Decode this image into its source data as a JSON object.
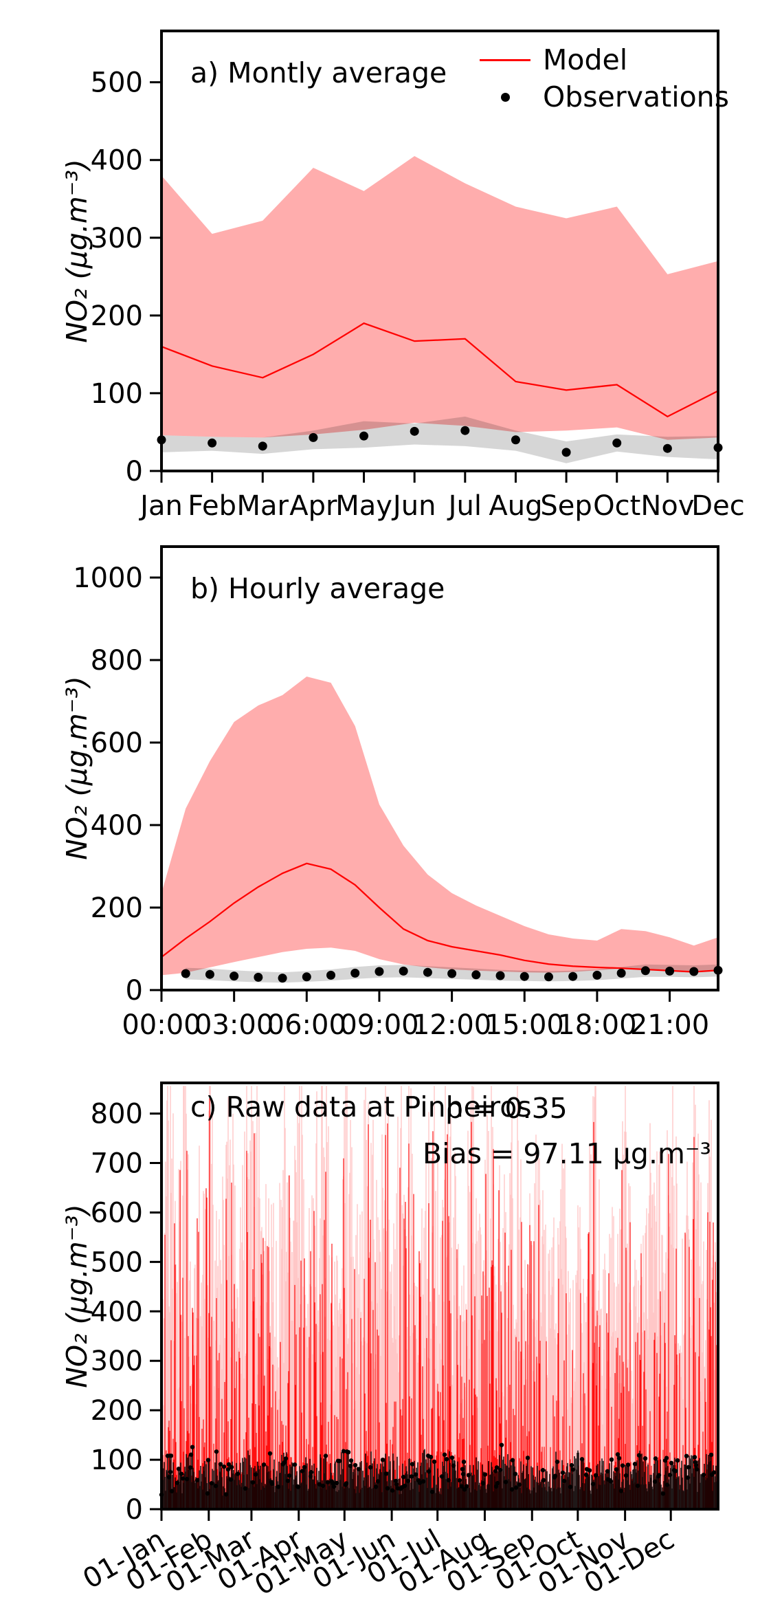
{
  "figure": {
    "background": "#ffffff",
    "colors": {
      "model": "#ff0000",
      "model_band": "rgba(255,0,0,0.32)",
      "observations": "#000000",
      "observations_band": "rgba(0,0,0,0.16)",
      "axis": "#000000"
    }
  },
  "chart_data": [
    {
      "id": "monthly_average",
      "type": "line",
      "title": "a) Montly average",
      "ylabel": "NO₂ (µg.m⁻³)",
      "categories": [
        "Jan",
        "Feb",
        "Mar",
        "Apr",
        "May",
        "Jun",
        "Jul",
        "Aug",
        "Sep",
        "Oct",
        "Nov",
        "Dec"
      ],
      "ylim": [
        0,
        566
      ],
      "yticks": [
        0,
        100,
        200,
        300,
        400,
        500
      ],
      "legend_position": "upper right",
      "grid": false,
      "series": [
        {
          "name": "Model",
          "type": "line",
          "color": "model",
          "values": [
            160,
            135,
            120,
            150,
            190,
            167,
            170,
            115,
            104,
            111,
            70,
            103
          ]
        },
        {
          "name": "Model spread",
          "type": "band",
          "color": "model_band",
          "lower": [
            46,
            44,
            43,
            47,
            53,
            62,
            58,
            50,
            52,
            56,
            40,
            43
          ],
          "upper": [
            380,
            305,
            322,
            390,
            360,
            405,
            370,
            340,
            325,
            340,
            253,
            270
          ]
        },
        {
          "name": "Observations",
          "type": "scatter",
          "color": "observations",
          "values": [
            40,
            36,
            32,
            43,
            45,
            51,
            52,
            40,
            24,
            36,
            29,
            30
          ]
        },
        {
          "name": "Observations spread",
          "type": "band",
          "color": "observations_band",
          "lower": [
            24,
            26,
            22,
            28,
            30,
            34,
            32,
            26,
            10,
            25,
            18,
            15
          ],
          "upper": [
            46,
            44,
            43,
            52,
            64,
            61,
            70,
            52,
            38,
            47,
            44,
            45
          ]
        }
      ]
    },
    {
      "id": "hourly_average",
      "type": "line",
      "title": "b) Hourly average",
      "ylabel": "NO₂ (µg.m⁻³)",
      "x": [
        0,
        1,
        2,
        3,
        4,
        5,
        6,
        7,
        8,
        9,
        10,
        11,
        12,
        13,
        14,
        15,
        16,
        17,
        18,
        19,
        20,
        21,
        22,
        23
      ],
      "xticks": [
        0,
        3,
        6,
        9,
        12,
        15,
        18,
        21
      ],
      "xtick_labels": [
        "00:00",
        "03:00",
        "06:00",
        "09:00",
        "12:00",
        "15:00",
        "18:00",
        "21:00"
      ],
      "ylim": [
        0,
        1075
      ],
      "yticks": [
        0,
        200,
        400,
        600,
        800,
        1000
      ],
      "grid": false,
      "series": [
        {
          "name": "Model",
          "type": "line",
          "color": "model",
          "values": [
            80,
            125,
            166,
            211,
            250,
            283,
            307,
            293,
            255,
            200,
            148,
            120,
            105,
            95,
            85,
            72,
            63,
            58,
            55,
            53,
            50,
            47,
            44,
            48
          ]
        },
        {
          "name": "Model spread",
          "type": "band",
          "color": "model_band",
          "lower": [
            36,
            42,
            55,
            68,
            80,
            92,
            100,
            103,
            95,
            75,
            62,
            55,
            50,
            47,
            45,
            43,
            42,
            44,
            48,
            52,
            52,
            48,
            44,
            46
          ],
          "upper": [
            235,
            440,
            555,
            650,
            690,
            715,
            760,
            745,
            640,
            450,
            350,
            280,
            235,
            205,
            180,
            155,
            135,
            125,
            120,
            148,
            143,
            128,
            108,
            128
          ]
        },
        {
          "name": "Observations",
          "type": "scatter",
          "color": "observations",
          "values": [
            null,
            40,
            38,
            34,
            31,
            29,
            32,
            36,
            41,
            45,
            46,
            43,
            40,
            37,
            35,
            33,
            32,
            33,
            36,
            41,
            47,
            46,
            45,
            48
          ]
        },
        {
          "name": "Observations spread",
          "type": "band",
          "color": "observations_band",
          "lower": [
            null,
            26,
            24,
            21,
            19,
            18,
            20,
            23,
            27,
            30,
            31,
            29,
            27,
            25,
            23,
            22,
            21,
            22,
            24,
            28,
            32,
            32,
            31,
            33
          ],
          "upper": [
            null,
            54,
            52,
            48,
            45,
            43,
            46,
            50,
            56,
            60,
            61,
            58,
            55,
            52,
            49,
            47,
            46,
            47,
            50,
            56,
            62,
            61,
            60,
            62
          ]
        }
      ]
    },
    {
      "id": "raw_data_pinheiros",
      "type": "raw-series",
      "title": "c) Raw data at Pinheiros",
      "annotations": {
        "rho": "ρ = 0.35",
        "bias": "Bias = 97.11 µg.m⁻³"
      },
      "ylabel": "NO₂ (µg.m⁻³)",
      "xtick_labels": [
        "01-Jan",
        "01-Feb",
        "01-Mar",
        "01-Apr",
        "01-May",
        "01-Jun",
        "01-Jul",
        "01-Aug",
        "01-Sep",
        "01-Oct",
        "01-Nov",
        "01-Dec"
      ],
      "xtick_days": [
        0,
        31,
        59,
        90,
        120,
        151,
        181,
        212,
        243,
        273,
        304,
        334
      ],
      "days_in_year": 365,
      "ylim": [
        0,
        862
      ],
      "yticks": [
        0,
        100,
        200,
        300,
        400,
        500,
        600,
        700,
        800
      ],
      "grid": false,
      "series": [
        {
          "name": "Model (raw hourly)",
          "color": "model",
          "envelope_max": [
            430,
            870,
            560,
            900,
            480,
            700,
            920,
            540,
            640,
            880,
            500,
            760,
            900,
            580,
            680,
            460,
            880,
            620,
            900,
            520,
            740,
            880,
            560,
            640,
            900,
            480,
            700,
            860,
            540,
            900,
            620,
            760,
            880,
            500,
            680,
            900,
            560,
            840,
            620,
            480,
            880,
            540,
            720,
            900,
            580,
            660,
            860,
            500,
            620,
            740,
            460,
            560,
            680,
            420,
            600,
            520,
            880,
            440,
            580,
            500,
            900,
            420,
            540,
            640,
            880,
            560,
            900,
            480,
            660,
            880,
            540,
            760,
            640
          ]
        },
        {
          "name": "Observations (raw hourly)",
          "color": "observations",
          "envelope_max": [
            95,
            120,
            80,
            110,
            130,
            90,
            105,
            125,
            85,
            115,
            100,
            130,
            90,
            110,
            120,
            95,
            130,
            105,
            85,
            118,
            100,
            125,
            92,
            112,
            130,
            88,
            108,
            120,
            96,
            115,
            128,
            90,
            106,
            98,
            122,
            110,
            92,
            128,
            100,
            115,
            88,
            120,
            105,
            95,
            132,
            108,
            92,
            118,
            100,
            112,
            90,
            125,
            96,
            110,
            130,
            85,
            105,
            120,
            98,
            115,
            92,
            108,
            125,
            90,
            118,
            100,
            112,
            95,
            128,
            105,
            110,
            120,
            100
          ]
        }
      ]
    }
  ],
  "legend": {
    "model_label": "Model",
    "observations_label": "Observations"
  }
}
